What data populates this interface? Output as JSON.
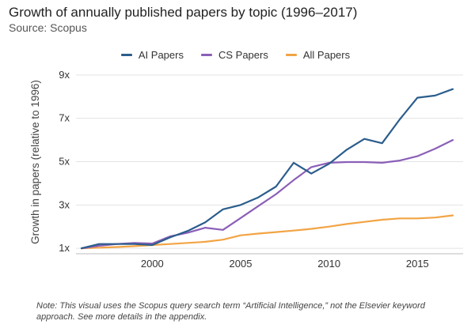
{
  "title": "Growth of annually published papers by topic (1996–2017)",
  "subtitle": "Source: Scopus",
  "note": "Note: This visual uses the Scopus query search term “Artificial Intelligence,” not the Elsevier keyword approach. See more details in the appendix.",
  "chart_data": {
    "type": "line",
    "title": "Growth of annually published papers by topic (1996–2017)",
    "xlabel": "",
    "ylabel": "Growth in papers (relative to 1996)",
    "xlim": [
      1996,
      2017
    ],
    "ylim": [
      0.75,
      9.25
    ],
    "x_ticks": [
      2000,
      2005,
      2010,
      2015
    ],
    "x_tick_labels": [
      "2000",
      "2005",
      "2010",
      "2015"
    ],
    "y_ticks": [
      1,
      3,
      5,
      7,
      9
    ],
    "y_tick_labels": [
      "1x",
      "3x",
      "5x",
      "7x",
      "9x"
    ],
    "grid": true,
    "legend_position": "top-center",
    "x": [
      1996,
      1997,
      1998,
      1999,
      2000,
      2001,
      2002,
      2003,
      2004,
      2005,
      2006,
      2007,
      2008,
      2009,
      2010,
      2011,
      2012,
      2013,
      2014,
      2015,
      2016,
      2017
    ],
    "series": [
      {
        "name": "AI Papers",
        "color": "#2b5d8c",
        "values": [
          1.0,
          1.2,
          1.2,
          1.2,
          1.15,
          1.5,
          1.8,
          2.2,
          2.8,
          3.0,
          3.35,
          3.85,
          4.95,
          4.45,
          4.9,
          5.55,
          6.05,
          5.85,
          6.95,
          7.95,
          8.05,
          8.35
        ]
      },
      {
        "name": "CS Papers",
        "color": "#8b5fb8",
        "values": [
          1.0,
          1.12,
          1.2,
          1.25,
          1.22,
          1.55,
          1.72,
          1.95,
          1.85,
          2.4,
          2.95,
          3.5,
          4.15,
          4.75,
          4.95,
          4.98,
          4.98,
          4.95,
          5.05,
          5.25,
          5.6,
          6.0
        ]
      },
      {
        "name": "All Papers",
        "color": "#f2a444",
        "values": [
          1.0,
          1.03,
          1.06,
          1.1,
          1.15,
          1.2,
          1.25,
          1.3,
          1.4,
          1.6,
          1.68,
          1.75,
          1.82,
          1.9,
          2.0,
          2.12,
          2.22,
          2.32,
          2.38,
          2.38,
          2.42,
          2.52
        ]
      }
    ]
  }
}
